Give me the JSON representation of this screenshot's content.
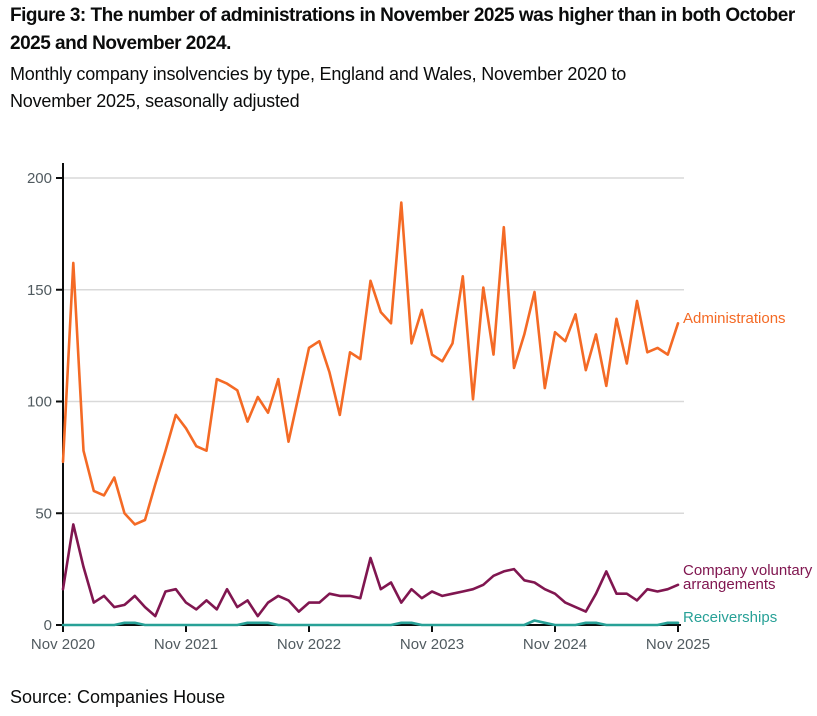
{
  "header": {
    "title": "Figure 3: The number of administrations in November 2025 was higher than in both October 2025 and November 2024.",
    "subtitle": "Monthly company insolvencies by type, England and Wales, November 2020 to November 2025, seasonally adjusted"
  },
  "footer": {
    "source": "Source: Companies House"
  },
  "colors": {
    "administrations": "#f46a25",
    "company_voluntary_arrangements": "#801650",
    "receiverships": "#28a197",
    "axis": "#0b0c0c",
    "gridline": "#d9d9d9",
    "tick_label": "#505a5f"
  },
  "chart_data": {
    "type": "line",
    "title": "Monthly company insolvencies by type, England and Wales, November 2020 to November 2025, seasonally adjusted",
    "xlabel": "",
    "ylabel": "",
    "ylim": [
      0,
      200
    ],
    "y_ticks": [
      0,
      50,
      100,
      150,
      200
    ],
    "grid": "horizontal",
    "legend_position": "right-of-line-ends",
    "x_start": "Nov 2020",
    "x_end": "Nov 2025",
    "x_interval": "monthly",
    "x_tick_labels": [
      "Nov 2020",
      "Nov 2021",
      "Nov 2022",
      "Nov 2023",
      "Nov 2024",
      "Nov 2025"
    ],
    "x_tick_every_n_points": 12,
    "series": [
      {
        "name": "Administrations",
        "color": "#f46a25",
        "values": [
          73,
          162,
          78,
          60,
          58,
          66,
          50,
          45,
          47,
          63,
          78,
          94,
          88,
          80,
          78,
          110,
          108,
          105,
          91,
          102,
          95,
          110,
          82,
          103,
          124,
          127,
          113,
          94,
          122,
          119,
          154,
          140,
          135,
          189,
          126,
          141,
          121,
          118,
          126,
          156,
          101,
          151,
          121,
          178,
          115,
          130,
          149,
          106,
          131,
          127,
          139,
          114,
          130,
          107,
          137,
          117,
          145,
          122,
          124,
          121,
          135
        ]
      },
      {
        "name": "Company voluntary arrangements",
        "color": "#801650",
        "values": [
          16,
          45,
          26,
          10,
          13,
          8,
          9,
          13,
          8,
          4,
          15,
          16,
          10,
          7,
          11,
          7,
          16,
          8,
          11,
          4,
          10,
          13,
          11,
          6,
          10,
          10,
          14,
          13,
          13,
          12,
          30,
          16,
          19,
          10,
          16,
          12,
          15,
          13,
          14,
          15,
          16,
          18,
          22,
          24,
          25,
          20,
          19,
          16,
          14,
          10,
          8,
          6,
          14,
          24,
          14,
          14,
          11,
          16,
          15,
          16,
          18
        ]
      },
      {
        "name": "Receiverships",
        "color": "#28a197",
        "values": [
          0,
          0,
          0,
          0,
          0,
          0,
          1,
          1,
          0,
          0,
          0,
          0,
          0,
          0,
          0,
          0,
          0,
          0,
          1,
          1,
          1,
          0,
          0,
          0,
          0,
          0,
          0,
          0,
          0,
          0,
          0,
          0,
          0,
          1,
          1,
          0,
          0,
          0,
          0,
          0,
          0,
          0,
          0,
          0,
          0,
          0,
          2,
          1,
          0,
          0,
          0,
          1,
          1,
          0,
          0,
          0,
          0,
          0,
          0,
          1,
          1
        ]
      }
    ]
  }
}
